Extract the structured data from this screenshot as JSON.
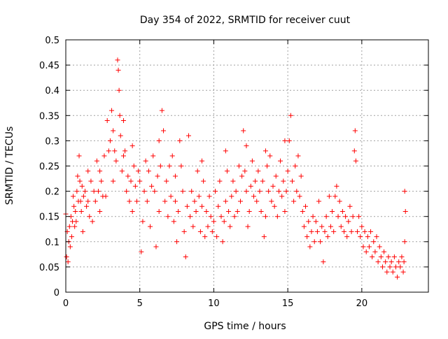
{
  "chart_data": {
    "type": "scatter",
    "title": "Day 354 of 2022, SRMTID for receiver cuut",
    "xlabel": "GPS time / hours",
    "ylabel": "SRMTID / TECUs",
    "xlim": [
      0,
      24.5
    ],
    "ylim": [
      0,
      0.5
    ],
    "x_ticks": [
      0,
      5,
      10,
      15,
      20
    ],
    "y_ticks": [
      0,
      0.05,
      0.1,
      0.15,
      0.2,
      0.25,
      0.3,
      0.35,
      0.4,
      0.45,
      0.5
    ],
    "x_tick_labels": [
      "0",
      "5",
      "10",
      "15",
      "20"
    ],
    "y_tick_labels": [
      "0",
      "0.05",
      "0.1",
      "0.15",
      "0.2",
      "0.25",
      "0.3",
      "0.35",
      "0.4",
      "0.45",
      "0.5"
    ],
    "grid": true,
    "marker": "plus",
    "color": "#ff0000",
    "series": [
      {
        "points": [
          [
            0.0,
            0.155
          ],
          [
            0.05,
            0.07
          ],
          [
            0.1,
            0.12
          ],
          [
            0.15,
            0.06
          ],
          [
            0.2,
            0.1
          ],
          [
            0.25,
            0.13
          ],
          [
            0.3,
            0.09
          ],
          [
            0.35,
            0.15
          ],
          [
            0.4,
            0.11
          ],
          [
            0.45,
            0.14
          ],
          [
            0.5,
            0.19
          ],
          [
            0.55,
            0.17
          ],
          [
            0.6,
            0.13
          ],
          [
            0.65,
            0.16
          ],
          [
            0.7,
            0.14
          ],
          [
            0.75,
            0.2
          ],
          [
            0.8,
            0.23
          ],
          [
            0.85,
            0.18
          ],
          [
            0.9,
            0.27
          ],
          [
            0.95,
            0.22
          ],
          [
            1.0,
            0.18
          ],
          [
            1.05,
            0.16
          ],
          [
            1.1,
            0.21
          ],
          [
            1.15,
            0.12
          ],
          [
            1.2,
            0.19
          ],
          [
            1.3,
            0.2
          ],
          [
            1.4,
            0.17
          ],
          [
            1.5,
            0.18
          ],
          [
            1.6,
            0.15
          ],
          [
            1.7,
            0.22
          ],
          [
            1.8,
            0.14
          ],
          [
            1.9,
            0.2
          ],
          [
            2.0,
            0.18
          ],
          [
            2.1,
            0.26
          ],
          [
            2.2,
            0.2
          ],
          [
            2.3,
            0.16
          ],
          [
            2.4,
            0.22
          ],
          [
            2.5,
            0.19
          ],
          [
            2.6,
            0.27
          ],
          [
            2.7,
            0.19
          ],
          [
            2.8,
            0.34
          ],
          [
            2.9,
            0.28
          ],
          [
            3.0,
            0.3
          ],
          [
            3.1,
            0.36
          ],
          [
            3.2,
            0.22
          ],
          [
            3.3,
            0.28
          ],
          [
            3.4,
            0.26
          ],
          [
            3.5,
            0.46
          ],
          [
            3.55,
            0.44
          ],
          [
            3.6,
            0.4
          ],
          [
            3.65,
            0.35
          ],
          [
            3.7,
            0.31
          ],
          [
            3.8,
            0.24
          ],
          [
            3.9,
            0.27
          ],
          [
            4.0,
            0.28
          ],
          [
            4.1,
            0.2
          ],
          [
            4.2,
            0.23
          ],
          [
            4.3,
            0.18
          ],
          [
            4.4,
            0.22
          ],
          [
            4.5,
            0.16
          ],
          [
            4.6,
            0.25
          ],
          [
            4.7,
            0.21
          ],
          [
            4.8,
            0.18
          ],
          [
            4.9,
            0.24
          ],
          [
            5.0,
            0.22
          ],
          [
            5.1,
            0.08
          ],
          [
            5.2,
            0.14
          ],
          [
            5.3,
            0.2
          ],
          [
            5.4,
            0.26
          ],
          [
            5.5,
            0.18
          ],
          [
            5.6,
            0.24
          ],
          [
            5.7,
            0.13
          ],
          [
            5.8,
            0.21
          ],
          [
            5.9,
            0.27
          ],
          [
            6.0,
            0.2
          ],
          [
            6.1,
            0.09
          ],
          [
            6.2,
            0.23
          ],
          [
            6.3,
            0.16
          ],
          [
            6.4,
            0.25
          ],
          [
            6.5,
            0.36
          ],
          [
            6.6,
            0.32
          ],
          [
            6.7,
            0.18
          ],
          [
            6.8,
            0.22
          ],
          [
            6.9,
            0.15
          ],
          [
            7.0,
            0.25
          ],
          [
            7.1,
            0.19
          ],
          [
            7.2,
            0.27
          ],
          [
            7.3,
            0.14
          ],
          [
            7.4,
            0.18
          ],
          [
            7.5,
            0.1
          ],
          [
            7.6,
            0.16
          ],
          [
            7.7,
            0.3
          ],
          [
            7.8,
            0.25
          ],
          [
            7.9,
            0.2
          ],
          [
            8.0,
            0.12
          ],
          [
            8.1,
            0.07
          ],
          [
            8.2,
            0.17
          ],
          [
            8.3,
            0.31
          ],
          [
            8.4,
            0.15
          ],
          [
            8.5,
            0.2
          ],
          [
            8.6,
            0.13
          ],
          [
            8.7,
            0.18
          ],
          [
            8.8,
            0.16
          ],
          [
            8.9,
            0.24
          ],
          [
            9.0,
            0.19
          ],
          [
            9.1,
            0.12
          ],
          [
            9.2,
            0.17
          ],
          [
            9.3,
            0.22
          ],
          [
            9.4,
            0.11
          ],
          [
            9.5,
            0.16
          ],
          [
            9.6,
            0.13
          ],
          [
            9.7,
            0.19
          ],
          [
            9.8,
            0.15
          ],
          [
            9.9,
            0.12
          ],
          [
            10.0,
            0.14
          ],
          [
            10.1,
            0.2
          ],
          [
            10.2,
            0.11
          ],
          [
            10.3,
            0.17
          ],
          [
            10.4,
            0.22
          ],
          [
            10.5,
            0.15
          ],
          [
            10.6,
            0.1
          ],
          [
            10.7,
            0.14
          ],
          [
            10.8,
            0.18
          ],
          [
            10.9,
            0.24
          ],
          [
            11.0,
            0.16
          ],
          [
            11.1,
            0.13
          ],
          [
            11.2,
            0.19
          ],
          [
            11.3,
            0.22
          ],
          [
            11.4,
            0.15
          ],
          [
            11.5,
            0.2
          ],
          [
            11.6,
            0.16
          ],
          [
            11.7,
            0.25
          ],
          [
            11.8,
            0.18
          ],
          [
            11.9,
            0.23
          ],
          [
            12.0,
            0.32
          ],
          [
            12.1,
            0.24
          ],
          [
            12.2,
            0.2
          ],
          [
            12.3,
            0.13
          ],
          [
            12.4,
            0.16
          ],
          [
            12.5,
            0.21
          ],
          [
            12.6,
            0.26
          ],
          [
            12.7,
            0.19
          ],
          [
            12.8,
            0.22
          ],
          [
            12.9,
            0.18
          ],
          [
            13.0,
            0.24
          ],
          [
            13.1,
            0.2
          ],
          [
            13.2,
            0.16
          ],
          [
            13.3,
            0.22
          ],
          [
            13.4,
            0.11
          ],
          [
            13.5,
            0.15
          ],
          [
            13.6,
            0.25
          ],
          [
            13.7,
            0.2
          ],
          [
            13.8,
            0.27
          ],
          [
            13.9,
            0.18
          ],
          [
            14.0,
            0.21
          ],
          [
            14.1,
            0.17
          ],
          [
            14.2,
            0.23
          ],
          [
            14.3,
            0.15
          ],
          [
            14.4,
            0.2
          ],
          [
            14.5,
            0.26
          ],
          [
            14.6,
            0.19
          ],
          [
            14.7,
            0.22
          ],
          [
            14.8,
            0.16
          ],
          [
            14.9,
            0.2
          ],
          [
            15.0,
            0.24
          ],
          [
            15.1,
            0.3
          ],
          [
            15.2,
            0.35
          ],
          [
            15.3,
            0.22
          ],
          [
            15.4,
            0.18
          ],
          [
            15.5,
            0.25
          ],
          [
            15.6,
            0.2
          ],
          [
            15.7,
            0.27
          ],
          [
            15.8,
            0.19
          ],
          [
            15.9,
            0.23
          ],
          [
            16.0,
            0.16
          ],
          [
            16.1,
            0.13
          ],
          [
            16.2,
            0.17
          ],
          [
            16.3,
            0.11
          ],
          [
            16.4,
            0.14
          ],
          [
            16.5,
            0.09
          ],
          [
            16.6,
            0.12
          ],
          [
            16.7,
            0.15
          ],
          [
            16.8,
            0.1
          ],
          [
            16.9,
            0.14
          ],
          [
            17.0,
            0.12
          ],
          [
            17.1,
            0.18
          ],
          [
            17.2,
            0.1
          ],
          [
            17.3,
            0.13
          ],
          [
            17.4,
            0.06
          ],
          [
            17.5,
            0.12
          ],
          [
            17.6,
            0.15
          ],
          [
            17.7,
            0.11
          ],
          [
            17.8,
            0.19
          ],
          [
            17.9,
            0.13
          ],
          [
            18.0,
            0.16
          ],
          [
            18.1,
            0.12
          ],
          [
            18.2,
            0.19
          ],
          [
            18.3,
            0.21
          ],
          [
            18.4,
            0.15
          ],
          [
            18.5,
            0.18
          ],
          [
            18.6,
            0.13
          ],
          [
            18.7,
            0.16
          ],
          [
            18.8,
            0.12
          ],
          [
            18.9,
            0.15
          ],
          [
            19.0,
            0.11
          ],
          [
            19.1,
            0.14
          ],
          [
            19.2,
            0.17
          ],
          [
            19.3,
            0.12
          ],
          [
            19.4,
            0.15
          ],
          [
            19.5,
            0.28
          ],
          [
            19.55,
            0.32
          ],
          [
            19.6,
            0.26
          ],
          [
            19.7,
            0.12
          ],
          [
            19.8,
            0.15
          ],
          [
            19.9,
            0.11
          ],
          [
            20.0,
            0.13
          ],
          [
            20.1,
            0.09
          ],
          [
            20.2,
            0.12
          ],
          [
            20.3,
            0.08
          ],
          [
            20.4,
            0.11
          ],
          [
            20.5,
            0.09
          ],
          [
            20.6,
            0.12
          ],
          [
            20.7,
            0.07
          ],
          [
            20.8,
            0.1
          ],
          [
            20.9,
            0.08
          ],
          [
            21.0,
            0.11
          ],
          [
            21.1,
            0.06
          ],
          [
            21.2,
            0.09
          ],
          [
            21.3,
            0.07
          ],
          [
            21.4,
            0.05
          ],
          [
            21.5,
            0.08
          ],
          [
            21.6,
            0.06
          ],
          [
            21.7,
            0.04
          ],
          [
            21.8,
            0.07
          ],
          [
            21.9,
            0.05
          ],
          [
            22.0,
            0.06
          ],
          [
            22.1,
            0.04
          ],
          [
            22.2,
            0.07
          ],
          [
            22.3,
            0.05
          ],
          [
            22.4,
            0.03
          ],
          [
            22.5,
            0.06
          ],
          [
            22.6,
            0.05
          ],
          [
            22.7,
            0.07
          ],
          [
            22.8,
            0.04
          ],
          [
            22.9,
            0.2
          ],
          [
            22.95,
            0.16
          ],
          [
            22.9,
            0.1
          ],
          [
            22.85,
            0.06
          ],
          [
            1.5,
            0.24
          ],
          [
            2.3,
            0.24
          ],
          [
            3.2,
            0.32
          ],
          [
            3.9,
            0.34
          ],
          [
            4.5,
            0.29
          ],
          [
            6.3,
            0.3
          ],
          [
            7.4,
            0.23
          ],
          [
            9.2,
            0.26
          ],
          [
            10.8,
            0.28
          ],
          [
            12.2,
            0.29
          ],
          [
            13.5,
            0.28
          ],
          [
            14.8,
            0.3
          ]
        ]
      }
    ]
  }
}
